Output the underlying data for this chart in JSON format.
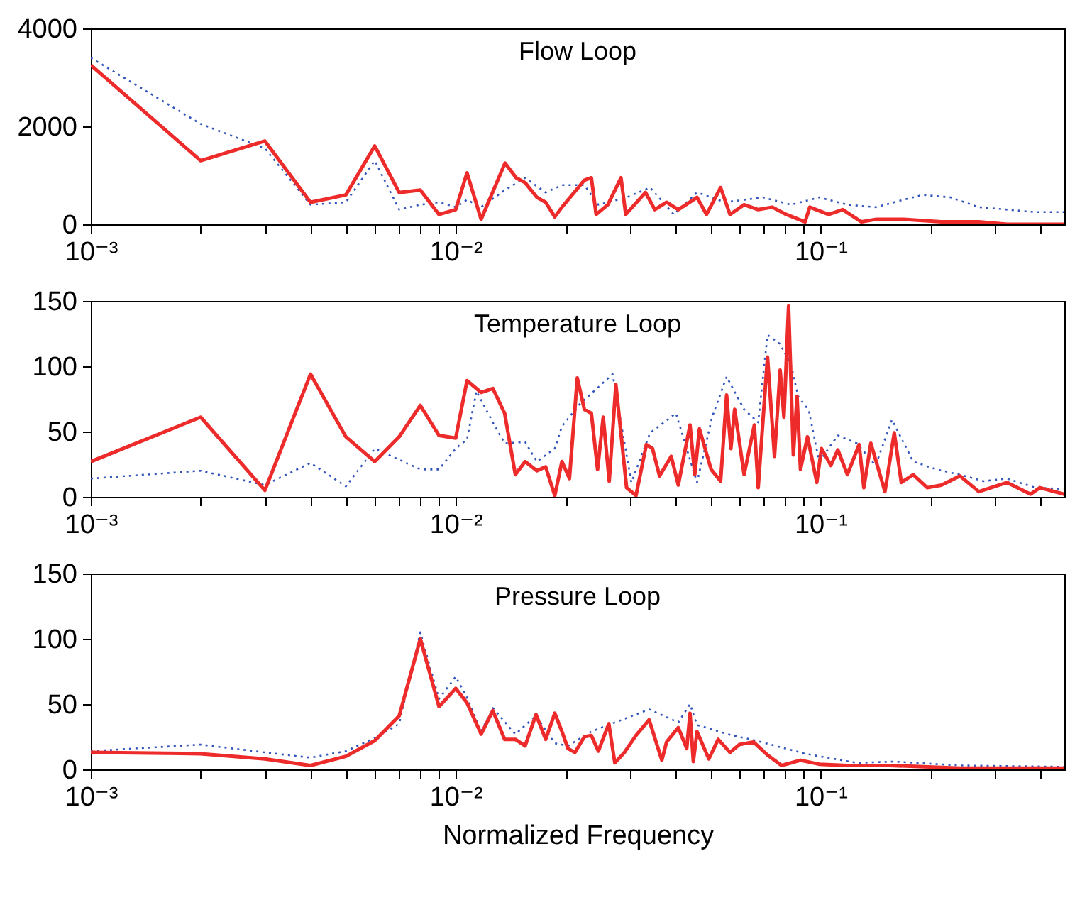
{
  "chart_data": [
    {
      "type": "line",
      "title": "Flow Loop",
      "log": "x",
      "xlim": [
        0.001,
        0.4656
      ],
      "ylim": [
        0,
        4000
      ],
      "yticks": [
        0,
        2000,
        4000
      ],
      "xticks": [
        {
          "value": 0.001,
          "label": "10⁻³"
        },
        {
          "value": 0.002,
          "label": null
        },
        {
          "value": 0.003,
          "label": null
        },
        {
          "value": 0.004,
          "label": null
        },
        {
          "value": 0.005,
          "label": null
        },
        {
          "value": 0.006,
          "label": null
        },
        {
          "value": 0.007,
          "label": null
        },
        {
          "value": 0.008,
          "label": null
        },
        {
          "value": 0.009,
          "label": null
        },
        {
          "value": 0.01,
          "label": "10⁻²"
        },
        {
          "value": 0.02,
          "label": null
        },
        {
          "value": 0.03,
          "label": null
        },
        {
          "value": 0.04,
          "label": null
        },
        {
          "value": 0.05,
          "label": null
        },
        {
          "value": 0.06,
          "label": null
        },
        {
          "value": 0.07,
          "label": null
        },
        {
          "value": 0.08,
          "label": null
        },
        {
          "value": 0.09,
          "label": null
        },
        {
          "value": 0.1,
          "label": "10⁻¹"
        },
        {
          "value": 0.2,
          "label": null
        },
        {
          "value": 0.3,
          "label": null
        },
        {
          "value": 0.4,
          "label": null
        }
      ],
      "series": [
        {
          "color": "#3355bb",
          "line_style": "dotted",
          "x": [
            0.001,
            0.002,
            0.003,
            0.004,
            0.005,
            0.006,
            0.007,
            0.008,
            0.009,
            0.01,
            0.01074,
            0.01174,
            0.01365,
            0.0155,
            0.01764,
            0.01955,
            0.02252,
            0.0246,
            0.0294,
            0.0341,
            0.0396,
            0.04585,
            0.0548,
            0.0695,
            0.083,
            0.0991,
            0.1184,
            0.1415,
            0.1902,
            0.2272,
            0.2714,
            0.3242,
            0.3873,
            0.4656
          ],
          "values": [
            3400,
            2050,
            1550,
            400,
            450,
            1300,
            300,
            400,
            450,
            350,
            500,
            350,
            700,
            950,
            650,
            800,
            800,
            400,
            550,
            750,
            200,
            650,
            450,
            550,
            400,
            550,
            400,
            350,
            600,
            550,
            350,
            300,
            250,
            250
          ]
        },
        {
          "color": "#ee2b2b",
          "line_style": "solid",
          "x": [
            0.001,
            0.002,
            0.003,
            0.004,
            0.005,
            0.006,
            0.007,
            0.008,
            0.009,
            0.01,
            0.01074,
            0.01174,
            0.01365,
            0.01465,
            0.0155,
            0.01669,
            0.01764,
            0.01869,
            0.01955,
            0.02252,
            0.02354,
            0.02426,
            0.02612,
            0.02838,
            0.02924,
            0.03313,
            0.03512,
            0.03784,
            0.04074,
            0.04585,
            0.04868,
            0.05321,
            0.05646,
            0.06171,
            0.06745,
            0.07373,
            0.08057,
            0.09069,
            0.0934,
            0.1052,
            0.115,
            0.1294,
            0.1415,
            0.169,
            0.2143,
            0.2714,
            0.3242,
            0.4656
          ],
          "values": [
            3250,
            1300,
            1700,
            450,
            600,
            1600,
            650,
            700,
            200,
            300,
            1050,
            100,
            1250,
            950,
            850,
            550,
            450,
            150,
            350,
            900,
            950,
            200,
            400,
            950,
            200,
            650,
            300,
            450,
            300,
            550,
            200,
            750,
            200,
            400,
            300,
            350,
            200,
            50,
            350,
            200,
            300,
            50,
            100,
            100,
            50,
            50,
            0,
            0
          ]
        }
      ]
    },
    {
      "type": "line",
      "title": "Temperature Loop",
      "log": "x",
      "xlim": [
        0.001,
        0.4656
      ],
      "ylim": [
        0,
        150
      ],
      "yticks": [
        0,
        50,
        100,
        150
      ],
      "xticks": [
        {
          "value": 0.001,
          "label": "10⁻³"
        },
        {
          "value": 0.002,
          "label": null
        },
        {
          "value": 0.003,
          "label": null
        },
        {
          "value": 0.004,
          "label": null
        },
        {
          "value": 0.005,
          "label": null
        },
        {
          "value": 0.006,
          "label": null
        },
        {
          "value": 0.007,
          "label": null
        },
        {
          "value": 0.008,
          "label": null
        },
        {
          "value": 0.009,
          "label": null
        },
        {
          "value": 0.01,
          "label": "10⁻²"
        },
        {
          "value": 0.02,
          "label": null
        },
        {
          "value": 0.03,
          "label": null
        },
        {
          "value": 0.04,
          "label": null
        },
        {
          "value": 0.05,
          "label": null
        },
        {
          "value": 0.06,
          "label": null
        },
        {
          "value": 0.07,
          "label": null
        },
        {
          "value": 0.08,
          "label": null
        },
        {
          "value": 0.09,
          "label": null
        },
        {
          "value": 0.1,
          "label": "10⁻¹"
        },
        {
          "value": 0.2,
          "label": null
        },
        {
          "value": 0.3,
          "label": null
        },
        {
          "value": 0.4,
          "label": null
        }
      ],
      "series": [
        {
          "color": "#3355bb",
          "line_style": "dotted",
          "x": [
            0.001,
            0.002,
            0.003,
            0.004,
            0.005,
            0.006,
            0.008,
            0.009,
            0.01,
            0.01074,
            0.0114,
            0.01264,
            0.01362,
            0.0155,
            0.01669,
            0.01869,
            0.01955,
            0.02187,
            0.02692,
            0.03029,
            0.0341,
            0.04015,
            0.04585,
            0.05043,
            0.05527,
            0.06171,
            0.06745,
            0.07154,
            0.0775,
            0.083,
            0.0868,
            0.09288,
            0.0991,
            0.1115,
            0.1257,
            0.1415,
            0.1569,
            0.1794,
            0.2079,
            0.2411,
            0.2796,
            0.3242,
            0.3873,
            0.4656
          ],
          "values": [
            14,
            20,
            9,
            26,
            8,
            37,
            21,
            21,
            37,
            44,
            81,
            57,
            41,
            42,
            27,
            37,
            54,
            71,
            94,
            11,
            49,
            64,
            11,
            61,
            92,
            67,
            57,
            124,
            117,
            101,
            77,
            66,
            27,
            47,
            41,
            24,
            59,
            27,
            21,
            17,
            12,
            14,
            7,
            6
          ]
        },
        {
          "color": "#ee2b2b",
          "line_style": "solid",
          "x": [
            0.001,
            0.002,
            0.003,
            0.004,
            0.005,
            0.006,
            0.007,
            0.008,
            0.009,
            0.01,
            0.01074,
            0.01174,
            0.01264,
            0.01362,
            0.01457,
            0.0155,
            0.01669,
            0.01764,
            0.01869,
            0.01955,
            0.0205,
            0.02154,
            0.02252,
            0.02354,
            0.02448,
            0.02537,
            0.02635,
            0.02748,
            0.0294,
            0.0312,
            0.0333,
            0.03462,
            0.0362,
            0.03896,
            0.04074,
            0.04387,
            0.04521,
            0.04656,
            0.05012,
            0.05321,
            0.05527,
            0.05677,
            0.05814,
            0.06171,
            0.06584,
            0.06745,
            0.07154,
            0.07476,
            0.07748,
            0.07936,
            0.08172,
            0.08422,
            0.08619,
            0.08808,
            0.09207,
            0.09763,
            0.1006,
            0.1067,
            0.1115,
            0.1184,
            0.1275,
            0.1314,
            0.1373,
            0.1501,
            0.1592,
            0.1664,
            0.1794,
            0.1961,
            0.2143,
            0.2411,
            0.2714,
            0.3242,
            0.3761,
            0.399,
            0.4656
          ],
          "values": [
            27,
            61,
            5,
            94,
            46,
            27,
            46,
            70,
            47,
            45,
            89,
            80,
            83,
            64,
            17,
            27,
            20,
            23,
            1,
            27,
            14,
            91,
            67,
            64,
            21,
            61,
            12,
            86,
            7,
            1,
            40,
            37,
            16,
            31,
            9,
            55,
            17,
            52,
            21,
            12,
            78,
            37,
            67,
            17,
            55,
            7,
            107,
            31,
            97,
            61,
            146,
            32,
            77,
            21,
            46,
            11,
            37,
            24,
            36,
            17,
            40,
            7,
            41,
            4,
            49,
            11,
            17,
            7,
            9,
            16,
            4,
            11,
            2,
            7,
            2
          ]
        }
      ]
    },
    {
      "type": "line",
      "title": "Pressure Loop",
      "xlabel": "Normalized Frequency",
      "log": "x",
      "xlim": [
        0.001,
        0.4656
      ],
      "ylim": [
        0,
        150
      ],
      "yticks": [
        0,
        50,
        100,
        150
      ],
      "xticks": [
        {
          "value": 0.001,
          "label": "10⁻³"
        },
        {
          "value": 0.002,
          "label": null
        },
        {
          "value": 0.003,
          "label": null
        },
        {
          "value": 0.004,
          "label": null
        },
        {
          "value": 0.005,
          "label": null
        },
        {
          "value": 0.006,
          "label": null
        },
        {
          "value": 0.007,
          "label": null
        },
        {
          "value": 0.008,
          "label": null
        },
        {
          "value": 0.009,
          "label": null
        },
        {
          "value": 0.01,
          "label": "10⁻²"
        },
        {
          "value": 0.02,
          "label": null
        },
        {
          "value": 0.03,
          "label": null
        },
        {
          "value": 0.04,
          "label": null
        },
        {
          "value": 0.05,
          "label": null
        },
        {
          "value": 0.06,
          "label": null
        },
        {
          "value": 0.07,
          "label": null
        },
        {
          "value": 0.08,
          "label": null
        },
        {
          "value": 0.09,
          "label": null
        },
        {
          "value": 0.1,
          "label": "10⁻¹"
        },
        {
          "value": 0.2,
          "label": null
        },
        {
          "value": 0.3,
          "label": null
        },
        {
          "value": 0.4,
          "label": null
        }
      ],
      "series": [
        {
          "color": "#3355bb",
          "line_style": "dotted",
          "x": [
            0.001,
            0.002,
            0.003,
            0.004,
            0.005,
            0.006,
            0.007,
            0.008,
            0.009,
            0.01,
            0.01074,
            0.01174,
            0.01264,
            0.01457,
            0.0166,
            0.01869,
            0.02031,
            0.02354,
            0.03389,
            0.04074,
            0.04387,
            0.04585,
            0.05728,
            0.0645,
            0.09069,
            0.1257,
            0.1592,
            0.2411,
            0.4656
          ],
          "values": [
            14,
            19,
            13,
            9,
            14,
            24,
            35,
            105,
            54,
            71,
            55,
            29,
            47,
            27,
            41,
            20,
            18,
            29,
            46,
            36,
            50,
            34,
            26,
            23,
            12,
            5,
            6,
            3,
            2
          ]
        },
        {
          "color": "#ee2b2b",
          "line_style": "solid",
          "x": [
            0.001,
            0.002,
            0.003,
            0.004,
            0.005,
            0.006,
            0.007,
            0.008,
            0.009,
            0.01,
            0.01074,
            0.01174,
            0.01264,
            0.01362,
            0.01457,
            0.0155,
            0.0166,
            0.01764,
            0.01869,
            0.01955,
            0.02031,
            0.02123,
            0.02252,
            0.02354,
            0.0246,
            0.02628,
            0.0273,
            0.029,
            0.0312,
            0.03389,
            0.03672,
            0.03784,
            0.04074,
            0.04297,
            0.04387,
            0.0448,
            0.04585,
            0.04941,
            0.05241,
            0.05646,
            0.05988,
            0.06546,
            0.07154,
            0.07817,
            0.08808,
            0.0991,
            0.1184,
            0.1546,
            0.2411,
            0.4656
          ],
          "values": [
            13,
            12,
            8,
            3,
            10,
            22,
            41,
            100,
            48,
            62,
            51,
            27,
            45,
            23,
            23,
            18,
            42,
            23,
            43,
            29,
            16,
            13,
            25,
            26,
            14,
            35,
            5,
            13,
            26,
            38,
            7,
            21,
            32,
            16,
            43,
            6,
            29,
            8,
            23,
            13,
            19,
            21,
            11,
            3,
            7,
            4,
            3,
            3,
            1,
            1
          ]
        }
      ]
    }
  ]
}
